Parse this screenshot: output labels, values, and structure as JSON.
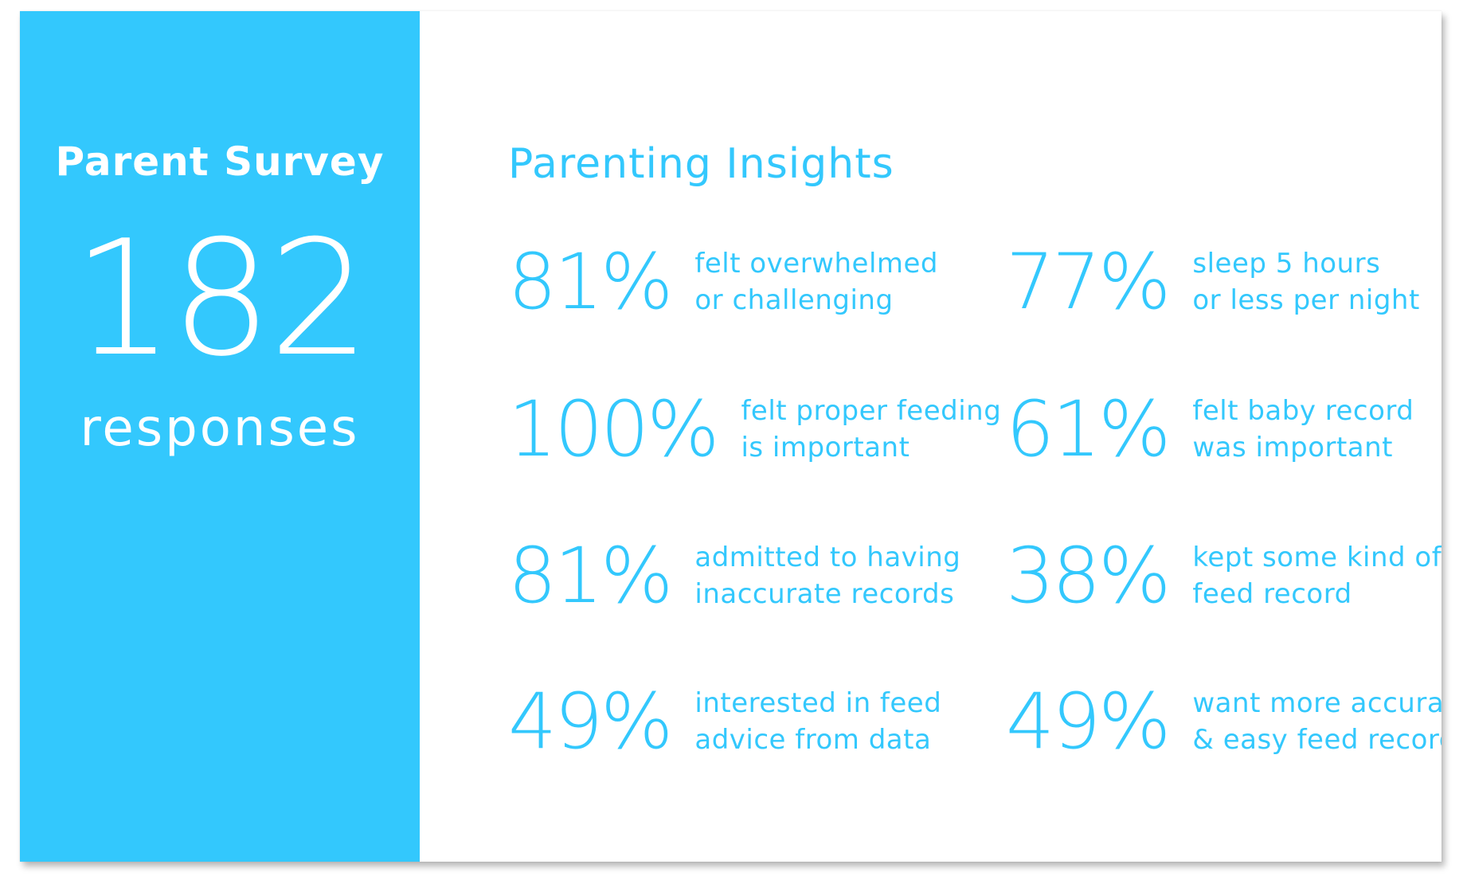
{
  "sidebar": {
    "title": "Parent Survey",
    "count": "182",
    "count_label": "responses"
  },
  "main": {
    "title": "Parenting Insights",
    "stats": [
      {
        "value": "81%",
        "line1": "felt overwhelmed",
        "line2": "or challenging"
      },
      {
        "value": "77%",
        "line1": "sleep 5 hours",
        "line2": "or less per night"
      },
      {
        "value": "100%",
        "line1": "felt proper feeding",
        "line2": "is important"
      },
      {
        "value": "61%",
        "line1": "felt baby record",
        "line2": "was important"
      },
      {
        "value": "81%",
        "line1": "admitted to having",
        "line2": "inaccurate records"
      },
      {
        "value": "38%",
        "line1": "kept some kind of",
        "line2": "feed record"
      },
      {
        "value": "49%",
        "line1": "interested in feed",
        "line2": "advice from data"
      },
      {
        "value": "49%",
        "line1": "want more accurate",
        "line2": "& easy feed record"
      }
    ]
  },
  "colors": {
    "accent": "#33c8fd",
    "background": "#ffffff",
    "sidebar_text": "#ffffff"
  }
}
